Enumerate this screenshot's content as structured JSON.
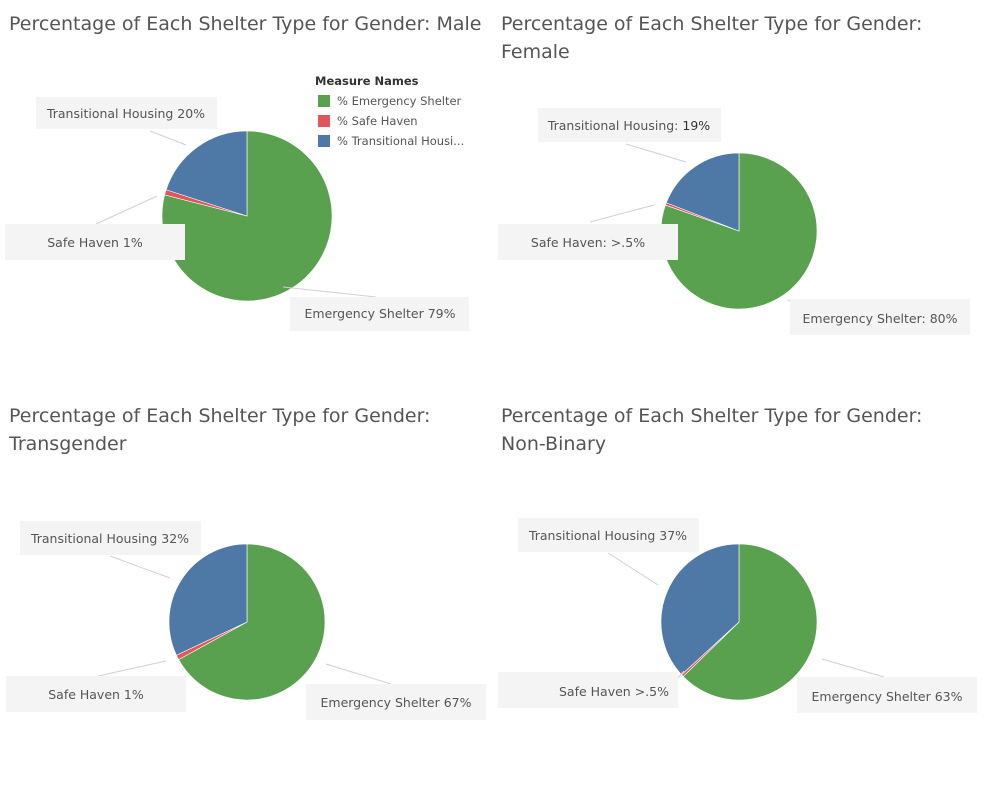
{
  "legend": {
    "title": "Measure Names",
    "items": [
      {
        "label": "% Emergency Shelter",
        "color": "#59a14f"
      },
      {
        "label": "% Safe Haven",
        "color": "#e15759"
      },
      {
        "label": "% Transitional Housi...",
        "color": "#4e79a7"
      }
    ]
  },
  "chart_data": [
    {
      "type": "pie",
      "title": "Percentage of Each Shelter Type for Gender: Male",
      "slices": [
        {
          "category": "Transitional Housing",
          "value": 20,
          "color": "#4e79a7",
          "label": "Transitional Housing 20%"
        },
        {
          "category": "Safe Haven",
          "value": 1,
          "color": "#e15759",
          "label": "Safe Haven 1%"
        },
        {
          "category": "Emergency Shelter",
          "value": 79,
          "color": "#59a14f",
          "label": "Emergency Shelter 79%"
        }
      ]
    },
    {
      "type": "pie",
      "title": "Percentage of Each Shelter Type for Gender: Female",
      "slices": [
        {
          "category": "Transitional Housing",
          "value": 19,
          "color": "#4e79a7",
          "label_prefix": "Transitional Housing: ",
          "label_value": "19%"
        },
        {
          "category": "Safe Haven",
          "value": 0.5,
          "color": "#e15759",
          "label": "Safe Haven: >.5%"
        },
        {
          "category": "Emergency Shelter",
          "value": 80,
          "color": "#59a14f",
          "label": "Emergency Shelter: 80%"
        }
      ]
    },
    {
      "type": "pie",
      "title": "Percentage of Each Shelter Type for Gender: Transgender",
      "slices": [
        {
          "category": "Transitional Housing",
          "value": 32,
          "color": "#4e79a7",
          "label": "Transitional Housing 32%"
        },
        {
          "category": "Safe Haven",
          "value": 1,
          "color": "#e15759",
          "label": "Safe Haven 1%"
        },
        {
          "category": "Emergency Shelter",
          "value": 67,
          "color": "#59a14f",
          "label": "Emergency Shelter 67%"
        }
      ]
    },
    {
      "type": "pie",
      "title": "Percentage of Each Shelter Type for Gender: Non-Binary",
      "slices": [
        {
          "category": "Transitional Housing",
          "value": 37,
          "color": "#4e79a7",
          "label": "Transitional Housing 37%"
        },
        {
          "category": "Safe Haven",
          "value": 0.5,
          "color": "#e15759",
          "label": "Safe Haven >.5%"
        },
        {
          "category": "Emergency Shelter",
          "value": 63,
          "color": "#59a14f",
          "label": "Emergency Shelter 63%"
        }
      ]
    }
  ]
}
